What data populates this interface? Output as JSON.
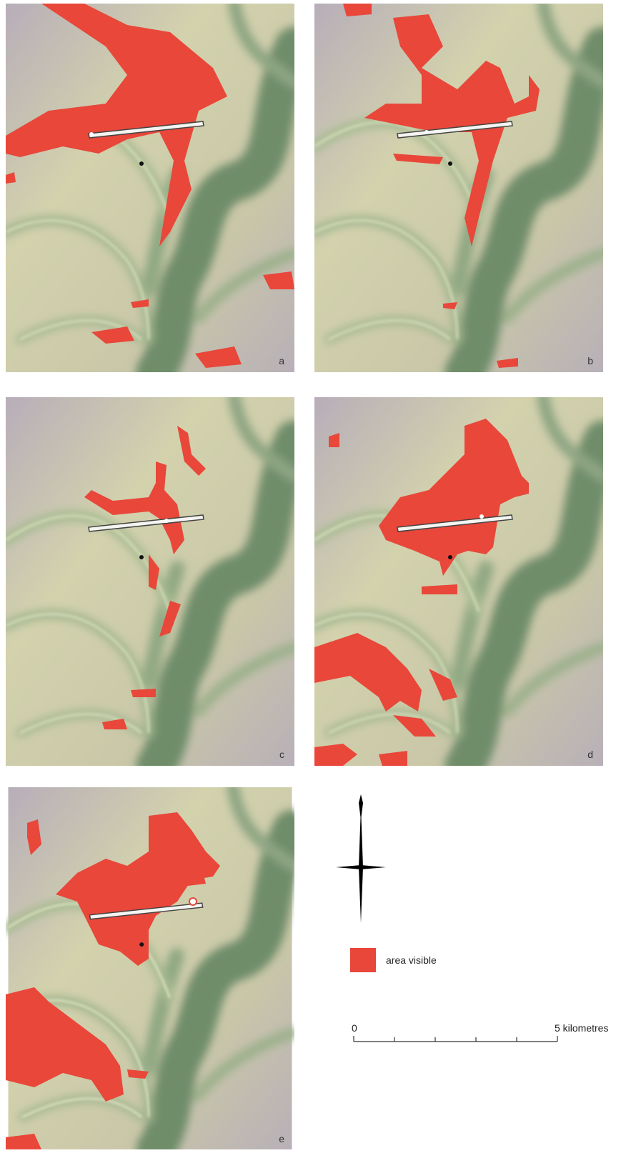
{
  "panels": [
    {
      "label": "a"
    },
    {
      "label": "b"
    },
    {
      "label": "c"
    },
    {
      "label": "d"
    },
    {
      "label": "e"
    }
  ],
  "legend": {
    "label": "area visible"
  },
  "scale": {
    "start": "0",
    "end": "5 kilometres"
  }
}
